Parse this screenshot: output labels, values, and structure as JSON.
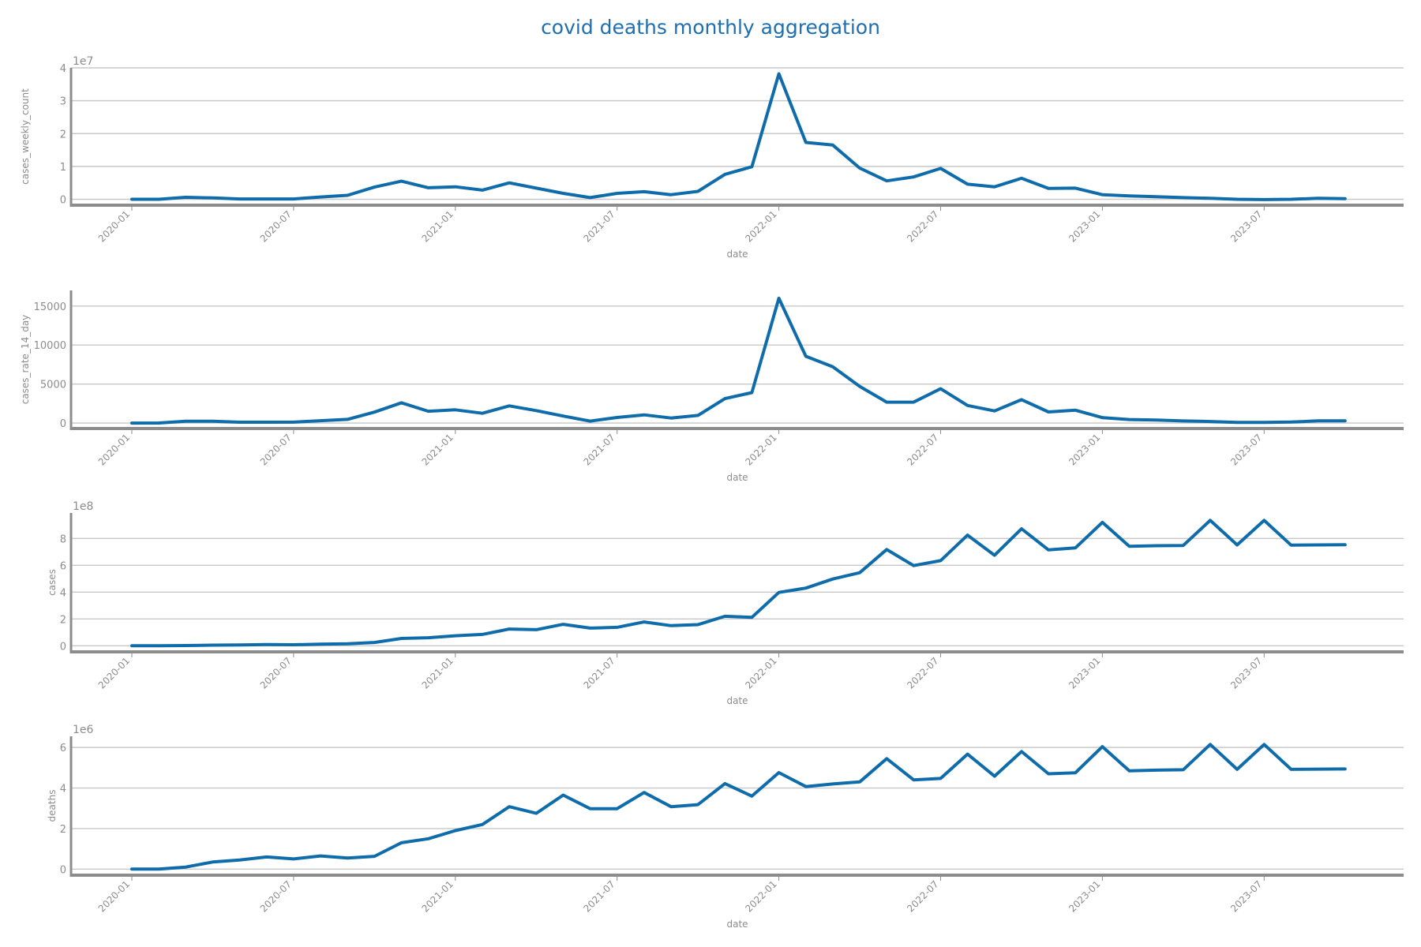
{
  "title": "covid deaths monthly aggregation",
  "colors": {
    "line": "#0f6cab",
    "title": "#1f6fb0",
    "text": "#8c8c8c",
    "grid": "#c8c8c8",
    "axis": "#8c8c8c"
  },
  "chart_data": [
    {
      "type": "line",
      "title": "",
      "xlabel": "date",
      "ylabel": "cases_weekly_count",
      "y_offset_label": "1e7",
      "y_scale": 10000000,
      "ylim": [
        -0.18,
        4.0
      ],
      "yticks": [
        0,
        1,
        2,
        3,
        4
      ],
      "grid": true,
      "x": [
        "2020-01",
        "2020-02",
        "2020-03",
        "2020-04",
        "2020-05",
        "2020-06",
        "2020-07",
        "2020-08",
        "2020-09",
        "2020-10",
        "2020-11",
        "2020-12",
        "2021-01",
        "2021-02",
        "2021-03",
        "2021-04",
        "2021-05",
        "2021-06",
        "2021-07",
        "2021-08",
        "2021-09",
        "2021-10",
        "2021-11",
        "2021-12",
        "2022-01",
        "2022-02",
        "2022-03",
        "2022-04",
        "2022-05",
        "2022-06",
        "2022-07",
        "2022-08",
        "2022-09",
        "2022-10",
        "2022-11",
        "2022-12",
        "2023-01",
        "2023-02",
        "2023-03",
        "2023-04",
        "2023-05",
        "2023-06",
        "2023-07",
        "2023-08",
        "2023-09",
        "2023-10"
      ],
      "values": [
        0.0,
        0.0,
        0.06,
        0.04,
        0.01,
        0.01,
        0.01,
        0.07,
        0.12,
        0.37,
        0.55,
        0.35,
        0.38,
        0.28,
        0.5,
        0.34,
        0.18,
        0.05,
        0.18,
        0.23,
        0.14,
        0.24,
        0.76,
        0.99,
        3.82,
        1.73,
        1.65,
        0.95,
        0.56,
        0.68,
        0.94,
        0.46,
        0.38,
        0.64,
        0.33,
        0.34,
        0.14,
        0.1,
        0.08,
        0.05,
        0.03,
        0.0,
        -0.01,
        0.0,
        0.03,
        0.02
      ]
    },
    {
      "type": "line",
      "title": "",
      "xlabel": "date",
      "ylabel": "cases_rate_14_day",
      "y_offset_label": "",
      "y_scale": 1,
      "ylim": [
        -700,
        17000
      ],
      "yticks": [
        0,
        5000,
        10000,
        15000
      ],
      "grid": true,
      "x": [
        "2020-01",
        "2020-02",
        "2020-03",
        "2020-04",
        "2020-05",
        "2020-06",
        "2020-07",
        "2020-08",
        "2020-09",
        "2020-10",
        "2020-11",
        "2020-12",
        "2021-01",
        "2021-02",
        "2021-03",
        "2021-04",
        "2021-05",
        "2021-06",
        "2021-07",
        "2021-08",
        "2021-09",
        "2021-10",
        "2021-11",
        "2021-12",
        "2022-01",
        "2022-02",
        "2022-03",
        "2022-04",
        "2022-05",
        "2022-06",
        "2022-07",
        "2022-08",
        "2022-09",
        "2022-10",
        "2022-11",
        "2022-12",
        "2023-01",
        "2023-02",
        "2023-03",
        "2023-04",
        "2023-05",
        "2023-06",
        "2023-07",
        "2023-08",
        "2023-09",
        "2023-10"
      ],
      "values": [
        0,
        10,
        230,
        230,
        110,
        110,
        120,
        300,
        470,
        1400,
        2600,
        1520,
        1700,
        1250,
        2200,
        1600,
        900,
        250,
        720,
        1050,
        650,
        980,
        3130,
        3900,
        16000,
        8550,
        7220,
        4700,
        2680,
        2680,
        4400,
        2250,
        1560,
        3000,
        1420,
        1650,
        700,
        450,
        380,
        270,
        200,
        90,
        80,
        130,
        280,
        280
      ]
    },
    {
      "type": "line",
      "title": "",
      "xlabel": "date",
      "ylabel": "cases",
      "y_offset_label": "1e8",
      "y_scale": 100000000,
      "ylim": [
        -0.45,
        9.9
      ],
      "yticks": [
        0,
        2,
        4,
        6,
        8
      ],
      "grid": true,
      "x": [
        "2020-01",
        "2020-02",
        "2020-03",
        "2020-04",
        "2020-05",
        "2020-06",
        "2020-07",
        "2020-08",
        "2020-09",
        "2020-10",
        "2020-11",
        "2020-12",
        "2021-01",
        "2021-02",
        "2021-03",
        "2021-04",
        "2021-05",
        "2021-06",
        "2021-07",
        "2021-08",
        "2021-09",
        "2021-10",
        "2021-11",
        "2021-12",
        "2022-01",
        "2022-02",
        "2022-03",
        "2022-04",
        "2022-05",
        "2022-06",
        "2022-07",
        "2022-08",
        "2022-09",
        "2022-10",
        "2022-11",
        "2022-12",
        "2023-01",
        "2023-02",
        "2023-03",
        "2023-04",
        "2023-05",
        "2023-06",
        "2023-07",
        "2023-08",
        "2023-09",
        "2023-10"
      ],
      "values": [
        0.0,
        0.0,
        0.02,
        0.05,
        0.07,
        0.09,
        0.08,
        0.12,
        0.15,
        0.25,
        0.55,
        0.6,
        0.75,
        0.85,
        1.25,
        1.2,
        1.6,
        1.32,
        1.38,
        1.78,
        1.5,
        1.58,
        2.2,
        2.12,
        3.98,
        4.3,
        4.98,
        5.45,
        7.18,
        5.98,
        6.35,
        8.25,
        6.75,
        8.72,
        7.15,
        7.3,
        9.2,
        7.42,
        7.46,
        7.48,
        9.35,
        7.52,
        9.35,
        7.5,
        7.52,
        7.53
      ]
    },
    {
      "type": "line",
      "title": "",
      "xlabel": "date",
      "ylabel": "deaths",
      "y_offset_label": "1e6",
      "y_scale": 1000000,
      "ylim": [
        -0.3,
        6.55
      ],
      "yticks": [
        0,
        2,
        4,
        6
      ],
      "grid": true,
      "x": [
        "2020-01",
        "2020-02",
        "2020-03",
        "2020-04",
        "2020-05",
        "2020-06",
        "2020-07",
        "2020-08",
        "2020-09",
        "2020-10",
        "2020-11",
        "2020-12",
        "2021-01",
        "2021-02",
        "2021-03",
        "2021-04",
        "2021-05",
        "2021-06",
        "2021-07",
        "2021-08",
        "2021-09",
        "2021-10",
        "2021-11",
        "2021-12",
        "2022-01",
        "2022-02",
        "2022-03",
        "2022-04",
        "2022-05",
        "2022-06",
        "2022-07",
        "2022-08",
        "2022-09",
        "2022-10",
        "2022-11",
        "2022-12",
        "2023-01",
        "2023-02",
        "2023-03",
        "2023-04",
        "2023-05",
        "2023-06",
        "2023-07",
        "2023-08",
        "2023-09",
        "2023-10"
      ],
      "values": [
        0.0,
        0.0,
        0.1,
        0.35,
        0.45,
        0.6,
        0.5,
        0.65,
        0.55,
        0.63,
        1.3,
        1.5,
        1.9,
        2.2,
        3.08,
        2.75,
        3.65,
        2.98,
        2.98,
        3.78,
        3.08,
        3.18,
        4.22,
        3.6,
        4.76,
        4.07,
        4.2,
        4.3,
        5.45,
        4.4,
        4.47,
        5.67,
        4.58,
        5.8,
        4.7,
        4.75,
        6.04,
        4.85,
        4.88,
        4.9,
        6.15,
        4.92,
        6.15,
        4.92,
        4.93,
        4.94
      ]
    }
  ],
  "x_ticks": [
    "2020-01",
    "2020-07",
    "2021-01",
    "2021-07",
    "2022-01",
    "2022-07",
    "2023-01",
    "2023-07"
  ]
}
